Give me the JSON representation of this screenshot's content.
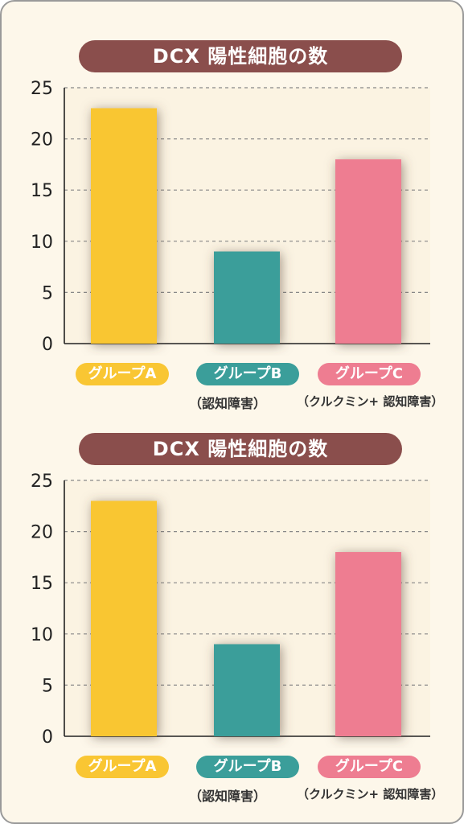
{
  "colors": {
    "title_bg": "#8a4e4c",
    "plot_bg": "#fbf3e2",
    "group_a": "#f9c633",
    "group_b": "#3b9e9a",
    "group_c": "#ee7d91",
    "grid": "#888888",
    "axis": "#222222"
  },
  "chart_data": [
    {
      "type": "bar",
      "title": "DCX 陽性細胞の数",
      "categories": [
        "グループA",
        "グループB",
        "グループC"
      ],
      "sublabels": [
        "",
        "（認知障害）",
        "（クルクミン+ 認知障害）"
      ],
      "values": [
        23,
        9,
        18
      ],
      "ylim": [
        0,
        25
      ],
      "yticks": [
        "0",
        "5",
        "10",
        "15",
        "20",
        "25"
      ],
      "grid": true
    },
    {
      "type": "bar",
      "title": "DCX 陽性細胞の数",
      "categories": [
        "グループA",
        "グループB",
        "グループC"
      ],
      "sublabels": [
        "",
        "（認知障害）",
        "（クルクミン+ 認知障害）"
      ],
      "values": [
        23,
        9,
        18
      ],
      "ylim": [
        0,
        25
      ],
      "yticks": [
        "0",
        "5",
        "10",
        "15",
        "20",
        "25"
      ],
      "grid": true
    }
  ]
}
